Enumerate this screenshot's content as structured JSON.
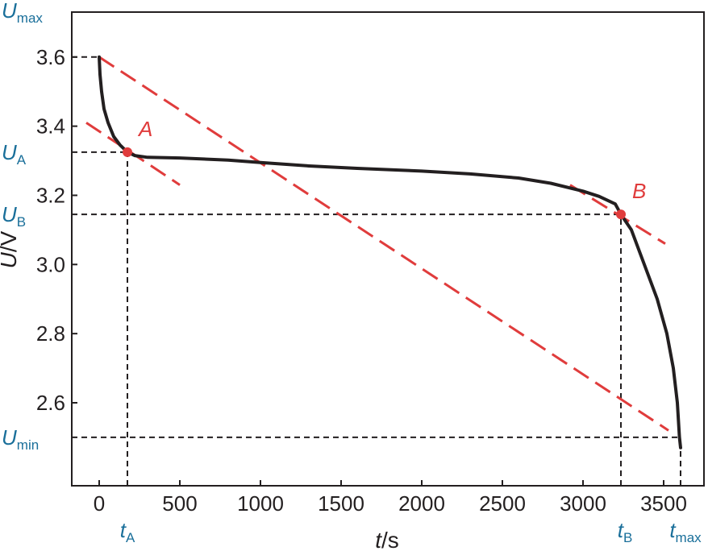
{
  "chart_data": {
    "type": "line",
    "xlabel_var": "t",
    "xlabel_unit": "/s",
    "ylabel_var": "U",
    "ylabel_unit": "/V",
    "xlim": [
      -170,
      3750
    ],
    "ylim": [
      2.36,
      3.73
    ],
    "x_ticks": [
      0,
      500,
      1000,
      1500,
      2000,
      2500,
      3000,
      3500
    ],
    "y_ticks": [
      2.6,
      2.8,
      3.0,
      3.2,
      3.4,
      3.6
    ],
    "grid": false,
    "series": [
      {
        "color": "#231f20",
        "points": [
          [
            0,
            3.6
          ],
          [
            5,
            3.55
          ],
          [
            15,
            3.5
          ],
          [
            30,
            3.45
          ],
          [
            55,
            3.41
          ],
          [
            90,
            3.37
          ],
          [
            130,
            3.345
          ],
          [
            175,
            3.325
          ],
          [
            220,
            3.315
          ],
          [
            300,
            3.31
          ],
          [
            500,
            3.308
          ],
          [
            800,
            3.302
          ],
          [
            1000,
            3.295
          ],
          [
            1300,
            3.285
          ],
          [
            1600,
            3.278
          ],
          [
            2000,
            3.27
          ],
          [
            2300,
            3.262
          ],
          [
            2600,
            3.25
          ],
          [
            2800,
            3.235
          ],
          [
            3000,
            3.212
          ],
          [
            3100,
            3.197
          ],
          [
            3200,
            3.175
          ],
          [
            3235,
            3.145
          ],
          [
            3300,
            3.1
          ],
          [
            3380,
            3.0
          ],
          [
            3460,
            2.9
          ],
          [
            3520,
            2.8
          ],
          [
            3560,
            2.7
          ],
          [
            3585,
            2.6
          ],
          [
            3598,
            2.5
          ],
          [
            3605,
            2.47
          ]
        ]
      }
    ],
    "points": [
      {
        "label": "A",
        "x": 175,
        "y": 3.325,
        "color": "#e03c3c"
      },
      {
        "label": "B",
        "x": 3235,
        "y": 3.145,
        "color": "#e03c3c"
      }
    ],
    "dashed_red_lines": [
      {
        "x1": 0,
        "y1": 3.6,
        "x2": 3530,
        "y2": 2.52,
        "color": "#e03c3c"
      },
      {
        "x1": -80,
        "y1": 3.41,
        "x2": 500,
        "y2": 3.23,
        "color": "#e03c3c"
      },
      {
        "x1": 2920,
        "y1": 3.23,
        "x2": 3510,
        "y2": 3.06,
        "color": "#e03c3c"
      }
    ],
    "reference_lines": [
      {
        "name": "Umax",
        "sym": "U",
        "sub": "max",
        "axis": "y",
        "value": 3.6,
        "to_x": 0
      },
      {
        "name": "UA",
        "sym": "U",
        "sub": "A",
        "axis": "y",
        "value": 3.325,
        "to_x": 175
      },
      {
        "name": "UB",
        "sym": "U",
        "sub": "B",
        "axis": "y",
        "value": 3.145,
        "to_x": 3235
      },
      {
        "name": "Umin",
        "sym": "U",
        "sub": "min",
        "axis": "y",
        "value": 2.5,
        "to_x": 3605
      },
      {
        "name": "tA",
        "sym": "t",
        "sub": "A",
        "axis": "x",
        "value": 175,
        "to_y": 3.325
      },
      {
        "name": "tB",
        "sym": "t",
        "sub": "B",
        "axis": "x",
        "value": 3235,
        "to_y": 3.145
      },
      {
        "name": "tmax",
        "sym": "t",
        "sub": "max",
        "axis": "x",
        "value": 3605,
        "to_y": 2.47
      }
    ]
  }
}
